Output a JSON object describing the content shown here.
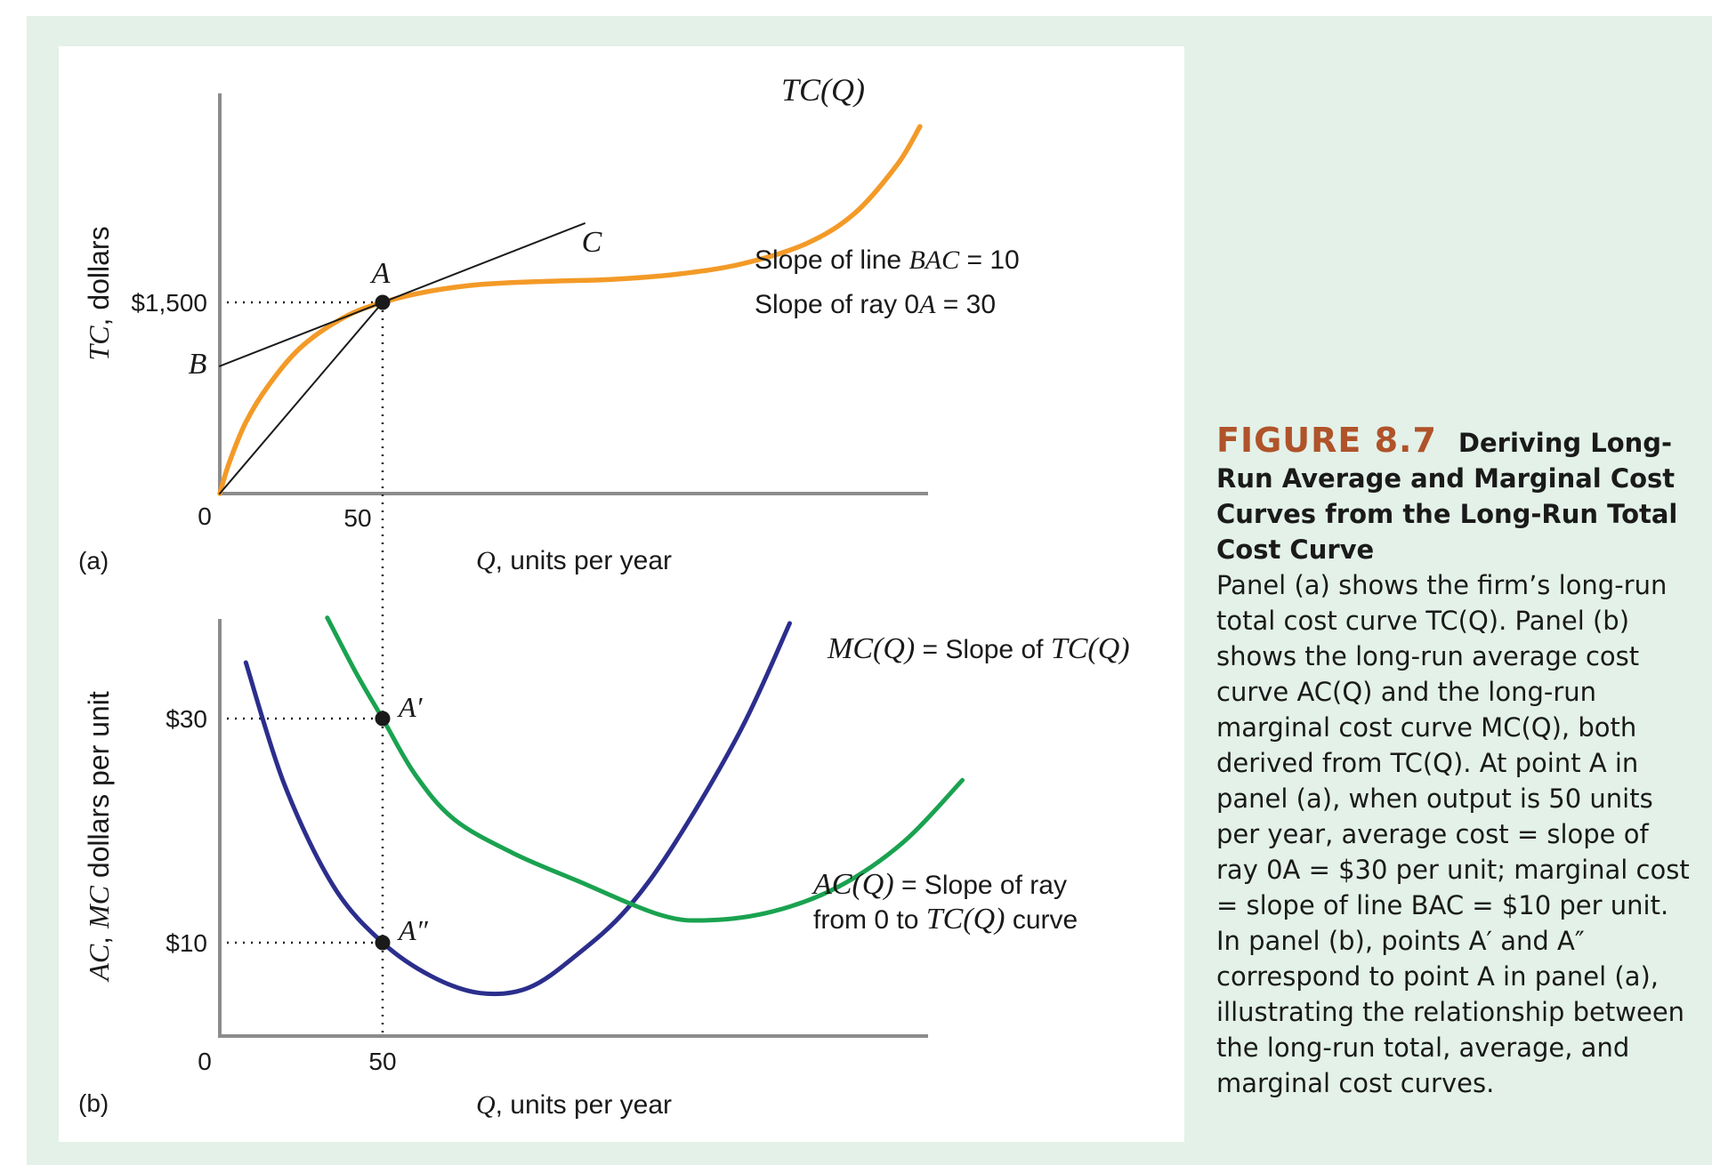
{
  "figure": {
    "number": "FIGURE 8.7",
    "title": "Deriving Long-Run Average and Marginal Cost Curves from the Long-Run Total Cost Curve",
    "body": "Panel (a) shows the firm’s long-run total cost curve TC(Q). Panel (b) shows the long-run average cost curve AC(Q) and the long-run marginal cost curve MC(Q), both derived from TC(Q). At point A in panel (a), when output is 50 units per year, average cost = slope of ray 0A = $30 per unit; marginal cost = slope of line BAC = $10 per unit. In panel (b), points A′ and A″ correspond to point A in panel (a), illustrating the relationship between the long-run total, average, and marginal cost curves."
  },
  "colors": {
    "frame": "#e3f1e8",
    "tc": "#f39a27",
    "ac": "#1aa250",
    "mc": "#2b2e8c",
    "fig_number": "#b0532a"
  },
  "chart_data": [
    {
      "type": "line",
      "panel_label": "(a)",
      "ylabel_italic": "TC",
      "ylabel_rest": ", dollars",
      "xlabel_italic": "Q",
      "xlabel_rest": ", units per year",
      "origin_label": "0",
      "x_ticks": [
        {
          "value": 50,
          "label": "50"
        }
      ],
      "y_ticks": [
        {
          "value": 1500,
          "label": "$1,500"
        }
      ],
      "series": [
        {
          "name": "TC(Q)",
          "color": "#f39a27",
          "points": [
            [
              0,
              0
            ],
            [
              3,
              250
            ],
            [
              8,
              560
            ],
            [
              15,
              850
            ],
            [
              25,
              1150
            ],
            [
              38,
              1380
            ],
            [
              50,
              1500
            ],
            [
              65,
              1590
            ],
            [
              80,
              1640
            ],
            [
              100,
              1665
            ],
            [
              120,
              1680
            ],
            [
              140,
              1720
            ],
            [
              160,
              1800
            ],
            [
              180,
              1960
            ],
            [
              195,
              2200
            ],
            [
              208,
              2580
            ],
            [
              215,
              2880
            ]
          ]
        },
        {
          "name": "Line BAC",
          "color": "#1a1a1a",
          "points": [
            [
              0,
              1000
            ],
            [
              112,
              2120
            ]
          ]
        },
        {
          "name": "Ray 0A",
          "color": "#1a1a1a",
          "points": [
            [
              0,
              0
            ],
            [
              50,
              1500
            ]
          ]
        }
      ],
      "points": [
        {
          "label": "A",
          "x": 50,
          "y": 1500
        },
        {
          "label": "B",
          "x": 0,
          "y": 1000
        },
        {
          "label": "C",
          "x": 112,
          "y": 2120
        }
      ],
      "curve_label": "TC(Q)",
      "annotations": [
        {
          "italic_prefix": "",
          "text_before": "Slope of line ",
          "italic": "BAC",
          "text_after": " = 10"
        },
        {
          "italic_prefix": "",
          "text_before": "Slope of ray 0",
          "italic": "A",
          "text_after": " = 30"
        }
      ]
    },
    {
      "type": "line",
      "panel_label": "(b)",
      "ylabel_italic_1": "AC",
      "ylabel_sep": ", ",
      "ylabel_italic_2": "MC",
      "ylabel_rest": " dollars per unit",
      "xlabel_italic": "Q",
      "xlabel_rest": ", units per year",
      "origin_label": "0",
      "x_ticks": [
        {
          "value": 50,
          "label": "50"
        }
      ],
      "y_ticks": [
        {
          "value": 30,
          "label": "$30"
        },
        {
          "value": 10,
          "label": "$10"
        }
      ],
      "series": [
        {
          "name": "MC(Q)",
          "color": "#2b2e8c",
          "points": [
            [
              8,
              35
            ],
            [
              20,
              24
            ],
            [
              35,
              15
            ],
            [
              50,
              10
            ],
            [
              65,
              7
            ],
            [
              80,
              5.5
            ],
            [
              95,
              6
            ],
            [
              110,
              9
            ],
            [
              125,
              13
            ],
            [
              140,
              19
            ],
            [
              160,
              29
            ],
            [
              175,
              38.5
            ]
          ]
        },
        {
          "name": "AC(Q)",
          "color": "#1aa250",
          "points": [
            [
              33,
              39
            ],
            [
              42,
              34
            ],
            [
              50,
              30
            ],
            [
              60,
              25
            ],
            [
              72,
              21
            ],
            [
              90,
              18
            ],
            [
              110,
              15.5
            ],
            [
              135,
              12.5
            ],
            [
              150,
              12
            ],
            [
              170,
              12.8
            ],
            [
              190,
              15
            ],
            [
              210,
              19
            ],
            [
              228,
              24.5
            ]
          ]
        }
      ],
      "points": [
        {
          "label": "A′",
          "x": 50,
          "y": 30
        },
        {
          "label": "A″",
          "x": 50,
          "y": 10
        }
      ],
      "mc_label": {
        "italic": "MC(Q)",
        "rest": " = Slope of ",
        "italic2": "TC(Q)"
      },
      "ac_label": {
        "italic": "AC(Q)",
        "rest": " = Slope of ray",
        "line2_before": "from 0 to ",
        "italic2": "TC(Q)",
        "line2_after": " curve"
      }
    }
  ]
}
